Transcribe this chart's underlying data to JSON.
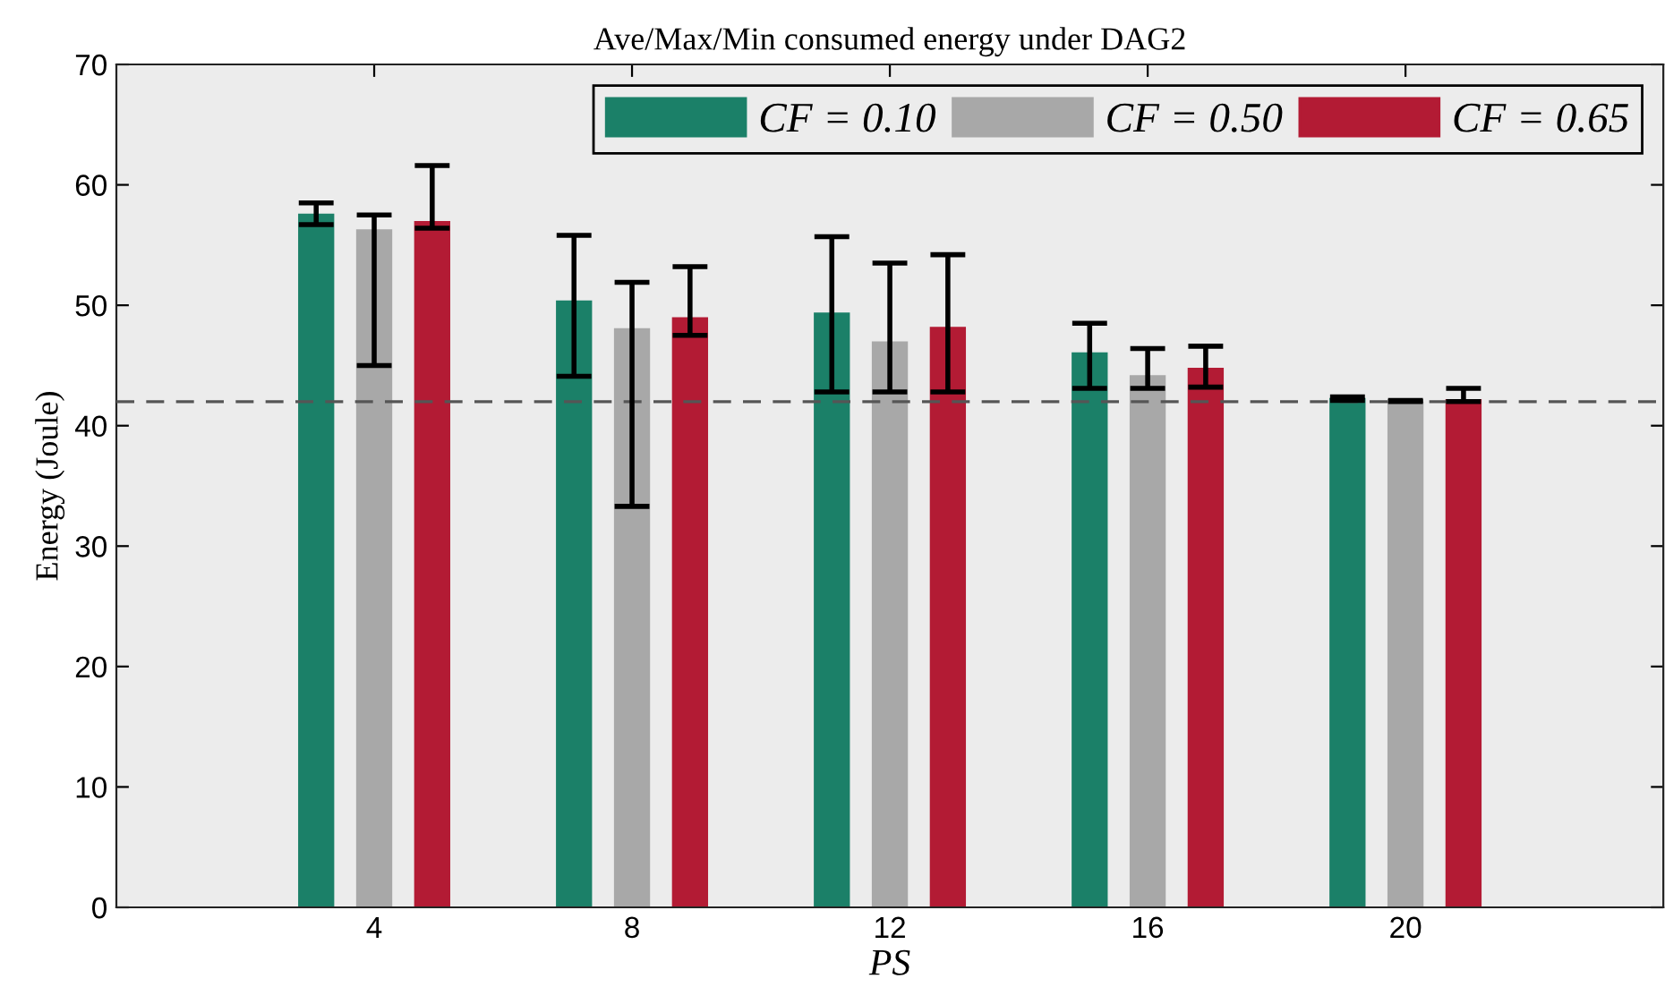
{
  "chart_data": {
    "type": "bar",
    "title": "Ave/Max/Min consumed energy under DAG2",
    "xlabel": "PS",
    "ylabel": "Energy (Joule)",
    "x": [
      4,
      8,
      12,
      16,
      20
    ],
    "xlim": [
      0,
      24
    ],
    "xticks": [
      4,
      8,
      12,
      16,
      20
    ],
    "ylim": [
      0,
      70
    ],
    "yticks": [
      0,
      10,
      20,
      30,
      40,
      50,
      60,
      70
    ],
    "series": [
      {
        "name": "CF = 0.10",
        "color": "#1b8068",
        "values": [
          57.6,
          50.4,
          49.4,
          46.1,
          42.3
        ],
        "errors": [
          [
            56.7,
            58.5
          ],
          [
            44.1,
            55.8
          ],
          [
            42.8,
            55.7
          ],
          [
            43.1,
            48.5
          ],
          [
            42.1,
            42.4
          ]
        ]
      },
      {
        "name": "CF = 0.50",
        "color": "#a8a8a8",
        "values": [
          56.3,
          48.1,
          47.0,
          44.2,
          42.0
        ],
        "errors": [
          [
            45.0,
            57.5
          ],
          [
            33.3,
            51.9
          ],
          [
            42.8,
            53.5
          ],
          [
            43.1,
            46.4
          ],
          [
            42.0,
            42.1
          ]
        ]
      },
      {
        "name": "CF = 0.65",
        "color": "#b31b34",
        "values": [
          57.0,
          49.0,
          48.2,
          44.8,
          42.2
        ],
        "errors": [
          [
            56.4,
            61.6
          ],
          [
            47.5,
            53.2
          ],
          [
            42.8,
            54.2
          ],
          [
            43.2,
            46.6
          ],
          [
            42.0,
            43.1
          ]
        ]
      }
    ],
    "ref_lines": [
      {
        "axis": "y",
        "value": 42,
        "color": "#555555",
        "line_style": "dashed"
      }
    ],
    "grid": false,
    "legend": "top right"
  }
}
